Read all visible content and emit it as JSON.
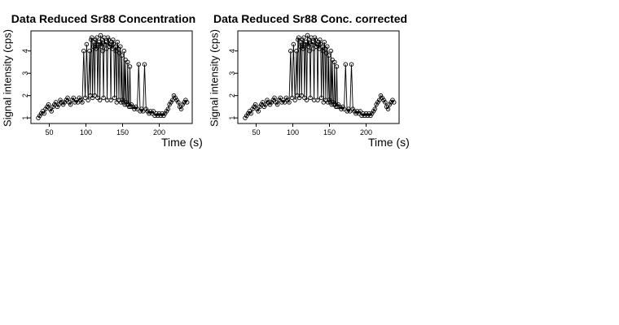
{
  "colors": {
    "background": "#ffffff",
    "ink": "#000000"
  },
  "chart_data": [
    {
      "type": "scatter",
      "title": "Data Reduced Sr88 Concentration",
      "xlabel": "Time (s)",
      "ylabel": "Signal intensity (cps)",
      "xlim": [
        25,
        245
      ],
      "ylim": [
        0.75,
        4.9
      ],
      "xticks": [
        "50",
        "100",
        "150",
        "200"
      ],
      "yticks": [
        "1",
        "2",
        "3",
        "4"
      ],
      "marker": "open-circle",
      "connect_points": true,
      "grid": false,
      "series": [
        {
          "x": [
            35,
            37,
            39,
            41,
            43,
            45,
            47,
            49,
            51,
            53,
            55,
            57,
            59,
            61,
            63,
            65,
            67,
            69,
            71,
            73,
            75,
            77,
            79,
            81,
            83,
            85,
            87,
            89,
            91,
            93,
            95,
            97,
            99,
            101,
            103,
            105,
            106,
            107,
            108,
            109,
            110,
            111,
            112,
            113,
            114,
            115,
            116,
            117,
            118,
            119,
            120,
            121,
            122,
            123,
            124,
            125,
            126,
            127,
            128,
            129,
            130,
            131,
            132,
            133,
            134,
            135,
            136,
            137,
            138,
            139,
            140,
            141,
            142,
            143,
            144,
            145,
            146,
            147,
            148,
            149,
            150,
            151,
            152,
            153,
            154,
            155,
            156,
            157,
            158,
            159,
            160,
            161,
            162,
            164,
            166,
            168,
            170,
            172,
            174,
            176,
            178,
            180,
            182,
            184,
            186,
            188,
            190,
            192,
            194,
            196,
            198,
            200,
            202,
            204,
            206,
            208,
            210,
            212,
            214,
            216,
            218,
            220,
            222,
            224,
            226,
            228,
            230,
            232,
            234,
            236,
            238
          ],
          "y": [
            1.0,
            1.1,
            1.2,
            1.3,
            1.2,
            1.4,
            1.5,
            1.6,
            1.4,
            1.3,
            1.5,
            1.6,
            1.7,
            1.5,
            1.6,
            1.8,
            1.7,
            1.6,
            1.7,
            1.8,
            1.9,
            1.7,
            1.6,
            1.8,
            1.9,
            1.7,
            1.8,
            1.7,
            1.9,
            1.8,
            1.7,
            4.0,
            1.9,
            4.3,
            1.8,
            4.0,
            2.0,
            4.5,
            4.6,
            1.9,
            4.2,
            4.4,
            2.0,
            4.5,
            4.1,
            4.6,
            1.9,
            4.3,
            4.4,
            1.8,
            4.7,
            4.2,
            4.5,
            4.0,
            1.9,
            4.6,
            4.3,
            4.4,
            4.1,
            1.8,
            4.6,
            4.5,
            4.2,
            4.3,
            1.8,
            4.4,
            4.1,
            4.5,
            4.3,
            1.9,
            4.2,
            4.0,
            1.7,
            4.4,
            4.1,
            1.8,
            3.9,
            4.2,
            1.7,
            3.8,
            1.8,
            1.7,
            4.0,
            1.6,
            3.6,
            1.7,
            1.6,
            3.5,
            1.6,
            1.5,
            3.3,
            1.5,
            1.6,
            1.5,
            1.4,
            1.5,
            1.4,
            3.4,
            1.3,
            1.4,
            1.3,
            3.4,
            1.4,
            1.3,
            1.2,
            1.3,
            1.2,
            1.3,
            1.1,
            1.2,
            1.1,
            1.2,
            1.1,
            1.2,
            1.1,
            1.2,
            1.3,
            1.4,
            1.6,
            1.7,
            1.8,
            2.0,
            1.9,
            1.8,
            1.7,
            1.5,
            1.4,
            1.6,
            1.7,
            1.8,
            1.7
          ]
        }
      ]
    },
    {
      "type": "scatter",
      "title": "Data Reduced Sr88 Conc. corrected",
      "xlabel": "Time (s)",
      "ylabel": "Signal intensity (cps)",
      "xlim": [
        25,
        245
      ],
      "ylim": [
        0.75,
        4.9
      ],
      "xticks": [
        "50",
        "100",
        "150",
        "200"
      ],
      "yticks": [
        "1",
        "2",
        "3",
        "4"
      ],
      "marker": "open-circle",
      "connect_points": true,
      "grid": false,
      "series": [
        {
          "x": [
            35,
            37,
            39,
            41,
            43,
            45,
            47,
            49,
            51,
            53,
            55,
            57,
            59,
            61,
            63,
            65,
            67,
            69,
            71,
            73,
            75,
            77,
            79,
            81,
            83,
            85,
            87,
            89,
            91,
            93,
            95,
            97,
            99,
            101,
            103,
            105,
            106,
            107,
            108,
            109,
            110,
            111,
            112,
            113,
            114,
            115,
            116,
            117,
            118,
            119,
            120,
            121,
            122,
            123,
            124,
            125,
            126,
            127,
            128,
            129,
            130,
            131,
            132,
            133,
            134,
            135,
            136,
            137,
            138,
            139,
            140,
            141,
            142,
            143,
            144,
            145,
            146,
            147,
            148,
            149,
            150,
            151,
            152,
            153,
            154,
            155,
            156,
            157,
            158,
            159,
            160,
            161,
            162,
            164,
            166,
            168,
            170,
            172,
            174,
            176,
            178,
            180,
            182,
            184,
            186,
            188,
            190,
            192,
            194,
            196,
            198,
            200,
            202,
            204,
            206,
            208,
            210,
            212,
            214,
            216,
            218,
            220,
            222,
            224,
            226,
            228,
            230,
            232,
            234,
            236,
            238
          ],
          "y": [
            1.0,
            1.1,
            1.2,
            1.3,
            1.2,
            1.4,
            1.5,
            1.6,
            1.4,
            1.3,
            1.5,
            1.6,
            1.7,
            1.5,
            1.6,
            1.8,
            1.7,
            1.6,
            1.7,
            1.8,
            1.9,
            1.7,
            1.6,
            1.8,
            1.9,
            1.7,
            1.8,
            1.7,
            1.9,
            1.8,
            1.7,
            4.0,
            1.9,
            4.3,
            1.8,
            4.0,
            2.0,
            4.5,
            4.6,
            1.9,
            4.2,
            4.4,
            2.0,
            4.5,
            4.1,
            4.6,
            1.9,
            4.3,
            4.4,
            1.8,
            4.7,
            4.2,
            4.5,
            4.0,
            1.9,
            4.6,
            4.3,
            4.4,
            4.1,
            1.8,
            4.6,
            4.5,
            4.2,
            4.3,
            1.8,
            4.4,
            4.1,
            4.5,
            4.3,
            1.9,
            4.2,
            4.0,
            1.7,
            4.4,
            4.1,
            1.8,
            3.9,
            4.2,
            1.7,
            3.8,
            1.8,
            1.7,
            4.0,
            1.6,
            3.6,
            1.7,
            1.6,
            3.5,
            1.6,
            1.5,
            3.3,
            1.5,
            1.6,
            1.5,
            1.4,
            1.5,
            1.4,
            3.4,
            1.3,
            1.4,
            1.3,
            3.4,
            1.4,
            1.3,
            1.2,
            1.3,
            1.2,
            1.3,
            1.1,
            1.2,
            1.1,
            1.2,
            1.1,
            1.2,
            1.1,
            1.2,
            1.3,
            1.4,
            1.6,
            1.7,
            1.8,
            2.0,
            1.9,
            1.8,
            1.7,
            1.5,
            1.4,
            1.6,
            1.7,
            1.8,
            1.7
          ]
        }
      ]
    }
  ]
}
